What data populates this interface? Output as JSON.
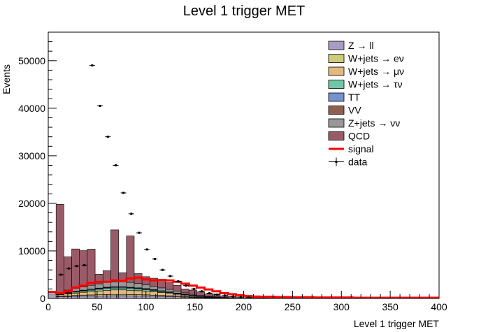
{
  "chart_data": {
    "type": "area",
    "title": "Level 1 trigger MET",
    "xlabel": "Level 1 trigger MET",
    "ylabel": "Events",
    "xlim": [
      0,
      400
    ],
    "ylim": [
      0,
      56000
    ],
    "x_ticks": [
      0,
      50,
      100,
      150,
      200,
      250,
      300,
      350,
      400
    ],
    "y_ticks": [
      0,
      10000,
      20000,
      30000,
      40000,
      50000
    ],
    "bin_width": 8,
    "legend_position": "top-right",
    "stack": [
      {
        "name": "Z → ll",
        "color": "#a99cc3",
        "values": [
          1000,
          350,
          400,
          450,
          500,
          520,
          540,
          560,
          580,
          580,
          560,
          540,
          520,
          480,
          440,
          400,
          340,
          280,
          220,
          160,
          120,
          80,
          50,
          30,
          10,
          0,
          0,
          0,
          0,
          0,
          0,
          0,
          0,
          0,
          0,
          0,
          0,
          0,
          0,
          0,
          0,
          0,
          0,
          0,
          0,
          0,
          0,
          0,
          0,
          0
        ]
      },
      {
        "name": "W+jets → eν",
        "color": "#cfcb7d",
        "values": [
          0,
          120,
          150,
          180,
          200,
          220,
          240,
          260,
          270,
          270,
          260,
          250,
          240,
          220,
          200,
          180,
          150,
          120,
          100,
          70,
          50,
          30,
          20,
          10,
          0,
          0,
          0,
          0,
          0,
          0,
          0,
          0,
          0,
          0,
          0,
          0,
          0,
          0,
          0,
          0,
          0,
          0,
          0,
          0,
          0,
          0,
          0,
          0,
          0,
          0
        ]
      },
      {
        "name": "W+jets → μν",
        "color": "#e2b97e",
        "values": [
          0,
          300,
          400,
          500,
          600,
          700,
          800,
          900,
          950,
          950,
          900,
          850,
          800,
          700,
          600,
          500,
          400,
          300,
          200,
          150,
          100,
          80,
          50,
          30,
          20,
          10,
          0,
          0,
          0,
          0,
          0,
          0,
          0,
          0,
          0,
          0,
          0,
          0,
          0,
          0,
          0,
          0,
          0,
          0,
          0,
          0,
          0,
          0,
          0,
          0
        ]
      },
      {
        "name": "W+jets → τν",
        "color": "#6fc7a6",
        "values": [
          0,
          100,
          150,
          200,
          250,
          300,
          350,
          380,
          400,
          400,
          380,
          350,
          300,
          250,
          200,
          150,
          120,
          90,
          60,
          40,
          30,
          20,
          10,
          0,
          0,
          0,
          0,
          0,
          0,
          0,
          0,
          0,
          0,
          0,
          0,
          0,
          0,
          0,
          0,
          0,
          0,
          0,
          0,
          0,
          0,
          0,
          0,
          0,
          0,
          0
        ]
      },
      {
        "name": "TT",
        "color": "#7593cf",
        "values": [
          0,
          80,
          100,
          120,
          130,
          150,
          160,
          170,
          180,
          180,
          170,
          160,
          150,
          140,
          130,
          120,
          100,
          80,
          70,
          60,
          50,
          40,
          30,
          20,
          10,
          0,
          0,
          0,
          0,
          0,
          0,
          0,
          0,
          0,
          0,
          0,
          0,
          0,
          0,
          0,
          0,
          0,
          0,
          0,
          0,
          0,
          0,
          0,
          0,
          0
        ]
      },
      {
        "name": "VV",
        "color": "#8e614e",
        "values": [
          0,
          40,
          50,
          60,
          70,
          80,
          90,
          90,
          90,
          90,
          80,
          80,
          70,
          60,
          50,
          40,
          30,
          20,
          10,
          0,
          0,
          0,
          0,
          0,
          0,
          0,
          0,
          0,
          0,
          0,
          0,
          0,
          0,
          0,
          0,
          0,
          0,
          0,
          0,
          0,
          0,
          0,
          0,
          0,
          0,
          0,
          0,
          0,
          0,
          0
        ]
      },
      {
        "name": "Z+jets → νν",
        "color": "#989898",
        "values": [
          0,
          300,
          500,
          600,
          700,
          800,
          900,
          1000,
          1050,
          1050,
          1000,
          900,
          800,
          700,
          600,
          500,
          400,
          300,
          200,
          150,
          100,
          80,
          50,
          30,
          20,
          10,
          0,
          0,
          0,
          0,
          0,
          0,
          0,
          0,
          0,
          0,
          0,
          0,
          0,
          0,
          0,
          0,
          0,
          0,
          0,
          0,
          0,
          0,
          0,
          0
        ]
      },
      {
        "name": "QCD",
        "color": "#9a5b68",
        "values": [
          0,
          18500,
          7000,
          8300,
          7600,
          7600,
          2000,
          2500,
          10900,
          1900,
          9800,
          2100,
          1700,
          1700,
          1700,
          1500,
          1200,
          800,
          900,
          750,
          500,
          600,
          300,
          300,
          250,
          130,
          150,
          100,
          80,
          50,
          30,
          30,
          20,
          20,
          10,
          10,
          10,
          5,
          5,
          5,
          5,
          5,
          5,
          5,
          5,
          5,
          5,
          5,
          5,
          0
        ]
      }
    ],
    "signal": {
      "name": "signal",
      "color": "#ff0000",
      "values": [
        1400,
        1100,
        1500,
        2300,
        2700,
        3300,
        3500,
        3500,
        3800,
        3700,
        4200,
        4400,
        4000,
        3800,
        3900,
        3800,
        3500,
        3100,
        2700,
        2300,
        1900,
        1500,
        1100,
        900,
        700,
        500,
        400,
        350,
        350,
        300,
        300,
        250,
        250,
        250,
        200,
        200,
        200,
        200,
        200,
        150,
        150,
        150,
        150,
        150,
        150,
        150,
        150,
        150,
        150,
        150
      ]
    },
    "data_series": {
      "name": "data",
      "points": [
        [
          13,
          5000
        ],
        [
          21,
          6300
        ],
        [
          29,
          6800
        ],
        [
          37,
          7000
        ],
        [
          45,
          49000
        ],
        [
          53,
          40500
        ],
        [
          61,
          34000
        ],
        [
          69,
          28000
        ],
        [
          77,
          22200
        ],
        [
          85,
          17800
        ],
        [
          93,
          13800
        ],
        [
          101,
          10300
        ],
        [
          109,
          8300
        ],
        [
          117,
          6000
        ],
        [
          125,
          4700
        ],
        [
          133,
          3600
        ],
        [
          141,
          2700
        ],
        [
          149,
          2000
        ],
        [
          157,
          1500
        ],
        [
          165,
          1100
        ],
        [
          173,
          800
        ],
        [
          181,
          600
        ],
        [
          189,
          400
        ],
        [
          197,
          300
        ],
        [
          205,
          200
        ]
      ]
    }
  }
}
